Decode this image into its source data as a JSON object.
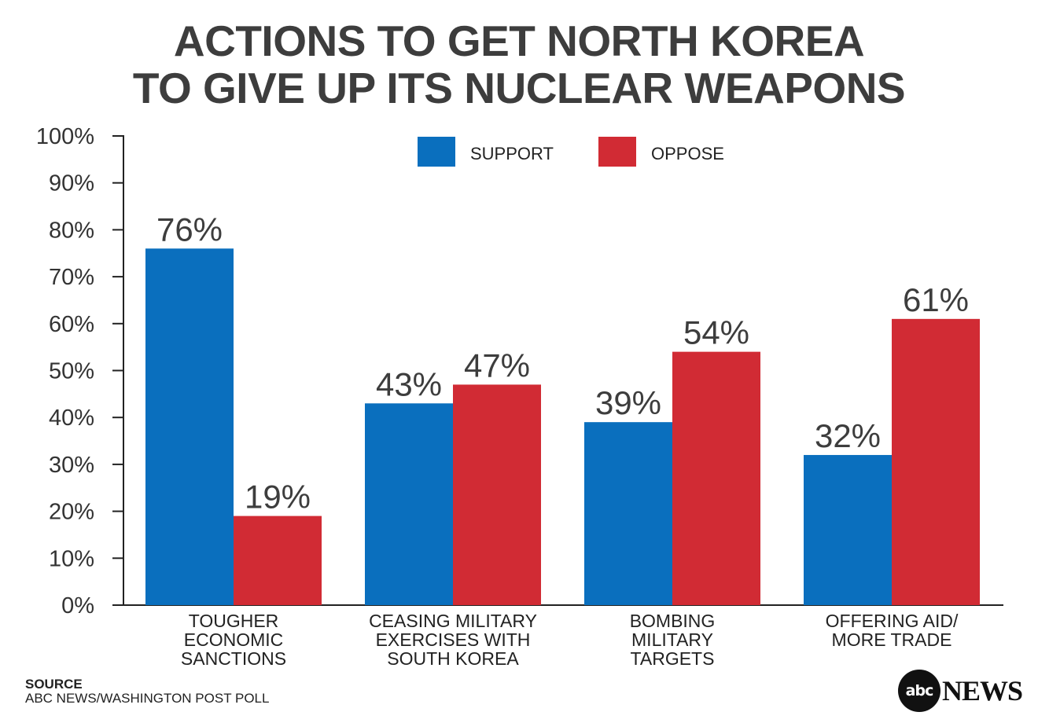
{
  "title_lines": [
    "ACTIONS TO GET NORTH KOREA",
    "TO GIVE UP ITS NUCLEAR WEAPONS"
  ],
  "colors": {
    "support": "#0a6fbe",
    "oppose": "#d12b34",
    "text": "#3d3d3d",
    "axis": "#222222"
  },
  "chart_data": {
    "type": "bar",
    "title": "ACTIONS TO GET NORTH KOREA TO GIVE UP ITS NUCLEAR WEAPONS",
    "categories": [
      [
        "TOUGHER",
        "ECONOMIC",
        "SANCTIONS"
      ],
      [
        "CEASING MILITARY",
        "EXERCISES WITH",
        "SOUTH KOREA"
      ],
      [
        "BOMBING",
        "MILITARY",
        "TARGETS"
      ],
      [
        "OFFERING AID/",
        "MORE TRADE"
      ]
    ],
    "series": [
      {
        "name": "SUPPORT",
        "values": [
          76,
          43,
          39,
          32
        ],
        "labels": [
          "76%",
          "43%",
          "39%",
          "32%"
        ]
      },
      {
        "name": "OPPOSE",
        "values": [
          19,
          47,
          54,
          61
        ],
        "labels": [
          "19%",
          "47%",
          "54%",
          "61%"
        ]
      }
    ],
    "ylim": [
      0,
      100
    ],
    "yticks": [
      0,
      10,
      20,
      30,
      40,
      50,
      60,
      70,
      80,
      90,
      100
    ],
    "ytick_labels": [
      "0%",
      "10%",
      "20%",
      "30%",
      "40%",
      "50%",
      "60%",
      "70%",
      "80%",
      "90%",
      "100%"
    ],
    "legend_position": "top-center",
    "grid": false,
    "xlabel": "",
    "ylabel": ""
  },
  "source": {
    "heading": "SOURCE",
    "text": "ABC NEWS/WASHINGTON POST POLL"
  },
  "logo": {
    "mark": "abc",
    "wordmark": "NEWS"
  }
}
